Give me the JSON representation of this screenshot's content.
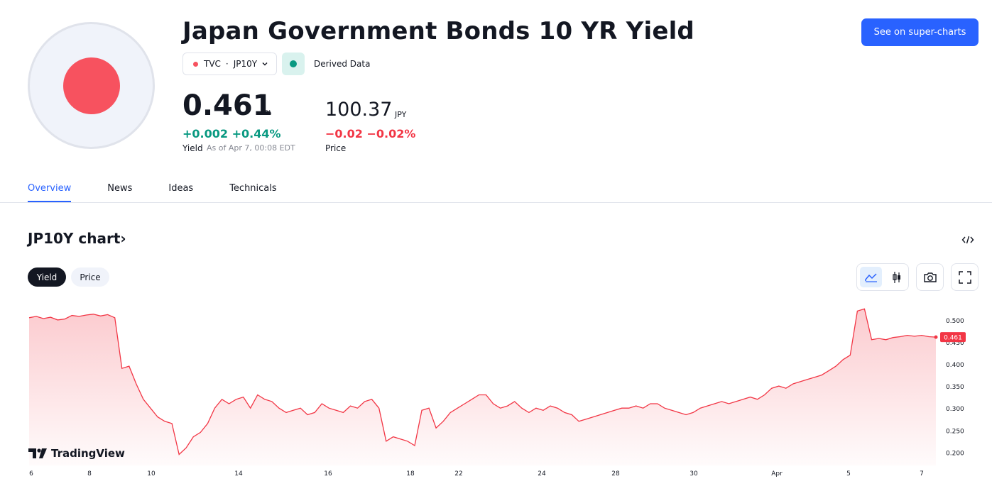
{
  "header": {
    "title": "Japan Government Bonds 10 YR Yield",
    "cta_label": "See on super-charts",
    "exchange": "TVC",
    "separator": "·",
    "ticker": "JP10Y",
    "derived_label": "Derived Data",
    "flag_color": "#f7525f"
  },
  "yield": {
    "value": "0.461",
    "unit": "%",
    "change": "+0.002 +0.44%",
    "label": "Yield",
    "as_of": "As of Apr 7, 00:08 EDT"
  },
  "price": {
    "value": "100.37",
    "unit": "JPY",
    "change": "−0.02 −0.02%",
    "label": "Price"
  },
  "tabs": [
    {
      "label": "Overview",
      "active": true
    },
    {
      "label": "News",
      "active": false
    },
    {
      "label": "Ideas",
      "active": false
    },
    {
      "label": "Technicals",
      "active": false
    }
  ],
  "chart_section": {
    "title": "JP10Y chart",
    "chevron": "›",
    "segments": [
      "Yield",
      "Price"
    ],
    "brand": "TradingView"
  },
  "colors": {
    "accent": "#2962ff",
    "positive": "#089981",
    "negative": "#f23645",
    "series_line": "#f23645"
  },
  "chart_data": {
    "type": "area",
    "ylim": [
      0.17,
      0.54
    ],
    "y_ticks": [
      "0.500",
      "0.450",
      "0.400",
      "0.350",
      "0.300",
      "0.250",
      "0.200"
    ],
    "x_ticks": [
      "6",
      "8",
      "10",
      "14",
      "16",
      "18",
      "22",
      "24",
      "28",
      "30",
      "Apr",
      "5",
      "7"
    ],
    "last_value_label": "0.461",
    "values": [
      0.505,
      0.508,
      0.503,
      0.506,
      0.5,
      0.502,
      0.51,
      0.508,
      0.511,
      0.513,
      0.509,
      0.512,
      0.505,
      0.39,
      0.395,
      0.355,
      0.32,
      0.3,
      0.28,
      0.27,
      0.265,
      0.195,
      0.21,
      0.235,
      0.245,
      0.265,
      0.3,
      0.32,
      0.31,
      0.32,
      0.325,
      0.3,
      0.33,
      0.32,
      0.315,
      0.3,
      0.29,
      0.295,
      0.3,
      0.285,
      0.29,
      0.31,
      0.3,
      0.295,
      0.29,
      0.305,
      0.3,
      0.315,
      0.32,
      0.3,
      0.225,
      0.235,
      0.23,
      0.225,
      0.215,
      0.295,
      0.3,
      0.255,
      0.27,
      0.29,
      0.3,
      0.31,
      0.32,
      0.33,
      0.33,
      0.31,
      0.3,
      0.305,
      0.315,
      0.3,
      0.29,
      0.3,
      0.295,
      0.305,
      0.3,
      0.29,
      0.285,
      0.27,
      0.275,
      0.28,
      0.285,
      0.29,
      0.295,
      0.3,
      0.3,
      0.305,
      0.3,
      0.31,
      0.31,
      0.3,
      0.295,
      0.29,
      0.285,
      0.29,
      0.3,
      0.305,
      0.31,
      0.315,
      0.31,
      0.315,
      0.32,
      0.325,
      0.32,
      0.33,
      0.345,
      0.35,
      0.345,
      0.355,
      0.36,
      0.365,
      0.37,
      0.375,
      0.385,
      0.395,
      0.41,
      0.42,
      0.52,
      0.525,
      0.455,
      0.458,
      0.455,
      0.46,
      0.462,
      0.465,
      0.463,
      0.465,
      0.462,
      0.461
    ]
  }
}
